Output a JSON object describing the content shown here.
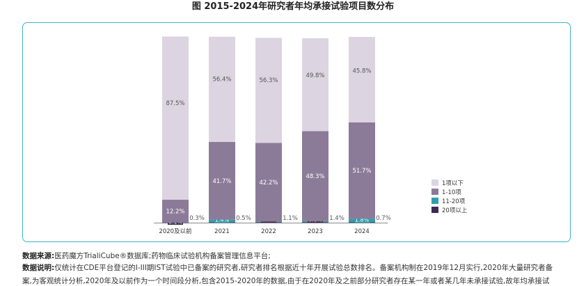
{
  "page": {
    "title": "图 2015-2024年研究者年均承接试验项目数分布",
    "source_label": "数据来源:",
    "source_text": "医药魔方TrialiCube®数据库;药物临床试验机构备案管理信息平台;",
    "note_label": "数据说明:",
    "note_text": "仅统计在CDE平台登记的I-III期IST试验中已备案的研究者,研究者排名根据近十年开展试验总数排名。备案机构制在2019年12月实行,2020年大量研究者备",
    "note_text_2": "案,为客观统计分析,2020年及以前作为一个时间段分析,包含2015-2020年的数据,由于在2020年及之前部分研究者存在某一年或者某几年未承接试验,故年均承接试"
  },
  "chart_data": {
    "type": "bar",
    "stacked": true,
    "title": "图 2015-2024年研究者年均承接试验项目数分布",
    "categories": [
      "2020及以前",
      "2021",
      "2022",
      "2023",
      "2024"
    ],
    "ylim": [
      0,
      100
    ],
    "grid": false,
    "legend_position": "right",
    "series": [
      {
        "name": "20项以上",
        "color": "#3d2a52",
        "values": [
          0.1,
          0.2,
          0.2,
          0.2,
          0.3
        ],
        "labels": [
          "0.1%",
          "",
          "",
          "",
          ""
        ]
      },
      {
        "name": "11-20项",
        "color": "#2e9fae",
        "values": [
          0.3,
          1.4,
          0.4,
          0.6,
          1.8
        ],
        "labels": [
          "0.3%",
          "1.4%",
          "0.4%",
          "0.6%",
          "1.8%"
        ]
      },
      {
        "name": "1-10项",
        "color": "#8c7b98",
        "values": [
          12.2,
          41.7,
          42.2,
          48.3,
          51.7
        ],
        "labels": [
          "12.2%",
          "41.7%",
          "42.2%",
          "48.3%",
          "51.7%"
        ]
      },
      {
        "name": "1项以下",
        "color": "#dcd4e0",
        "values": [
          87.5,
          56.4,
          56.3,
          49.8,
          45.8
        ],
        "labels": [
          "87.5%",
          "56.4%",
          "56.3%",
          "49.8%",
          "45.8%"
        ]
      }
    ],
    "side_labels": [
      "0.3%",
      "0.5%",
      "1.1%",
      "1.4%",
      "0.7%"
    ],
    "legend_order": [
      "1项以下",
      "1-10项",
      "11-20项",
      "20项以上"
    ]
  }
}
